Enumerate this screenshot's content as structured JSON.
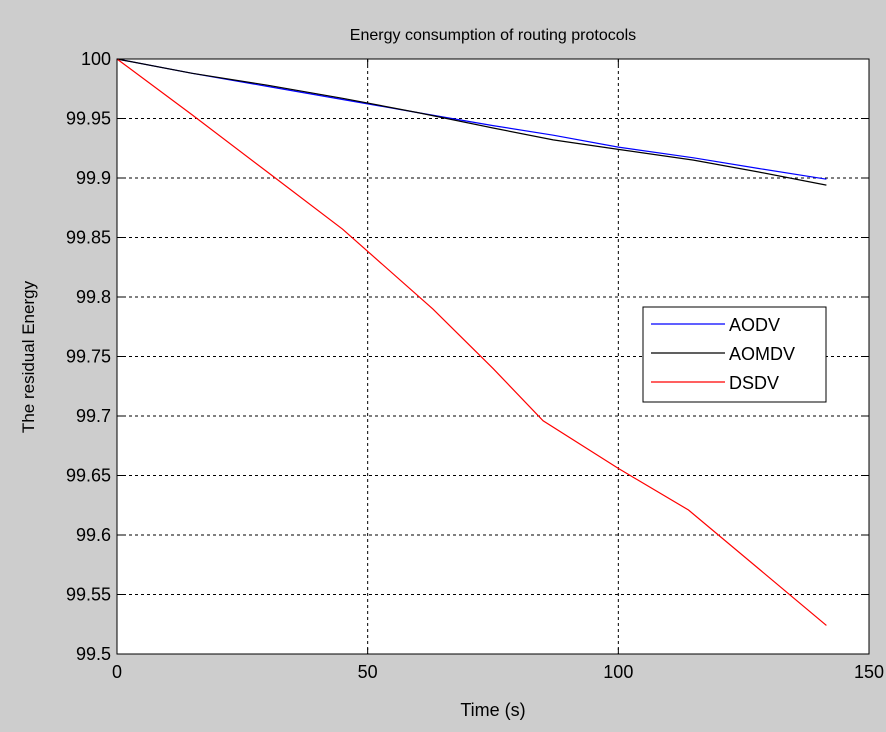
{
  "chart_data": {
    "type": "line",
    "title": "Energy consumption of routing protocols",
    "xlabel": "Time (s)",
    "ylabel": "The residual Energy",
    "xlim": [
      0,
      150
    ],
    "ylim": [
      99.5,
      100
    ],
    "xticks": [
      0,
      50,
      100,
      150
    ],
    "xtick_labels": [
      "0",
      "50",
      "100",
      "150"
    ],
    "yticks": [
      99.5,
      99.55,
      99.6,
      99.65,
      99.7,
      99.75,
      99.8,
      99.85,
      99.9,
      99.95,
      100
    ],
    "ytick_labels": [
      "99.5",
      "99.55",
      "99.6",
      "99.65",
      "99.7",
      "99.75",
      "99.8",
      "99.85",
      "99.9",
      "99.95",
      "100"
    ],
    "grid": true,
    "legend_position": "right",
    "series": [
      {
        "name": "AODV",
        "color": "#0000ff",
        "x": [
          0,
          15,
          30,
          45,
          60,
          75,
          87,
          100,
          115,
          128,
          141.5
        ],
        "y": [
          100,
          99.988,
          99.977,
          99.966,
          99.955,
          99.944,
          99.936,
          99.926,
          99.917,
          99.908,
          99.899
        ]
      },
      {
        "name": "AOMDV",
        "color": "#000000",
        "x": [
          0,
          15,
          30,
          45,
          60,
          75,
          87,
          100,
          115,
          128,
          141.5
        ],
        "y": [
          100,
          99.988,
          99.978,
          99.967,
          99.955,
          99.942,
          99.932,
          99.924,
          99.915,
          99.905,
          99.894
        ]
      },
      {
        "name": "DSDV",
        "color": "#ff0000",
        "x": [
          0,
          15,
          30,
          45,
          63,
          75,
          85,
          100,
          114,
          141.5
        ],
        "y": [
          100,
          99.953,
          99.905,
          99.857,
          99.79,
          99.74,
          99.696,
          99.656,
          99.621,
          99.524
        ]
      }
    ]
  }
}
